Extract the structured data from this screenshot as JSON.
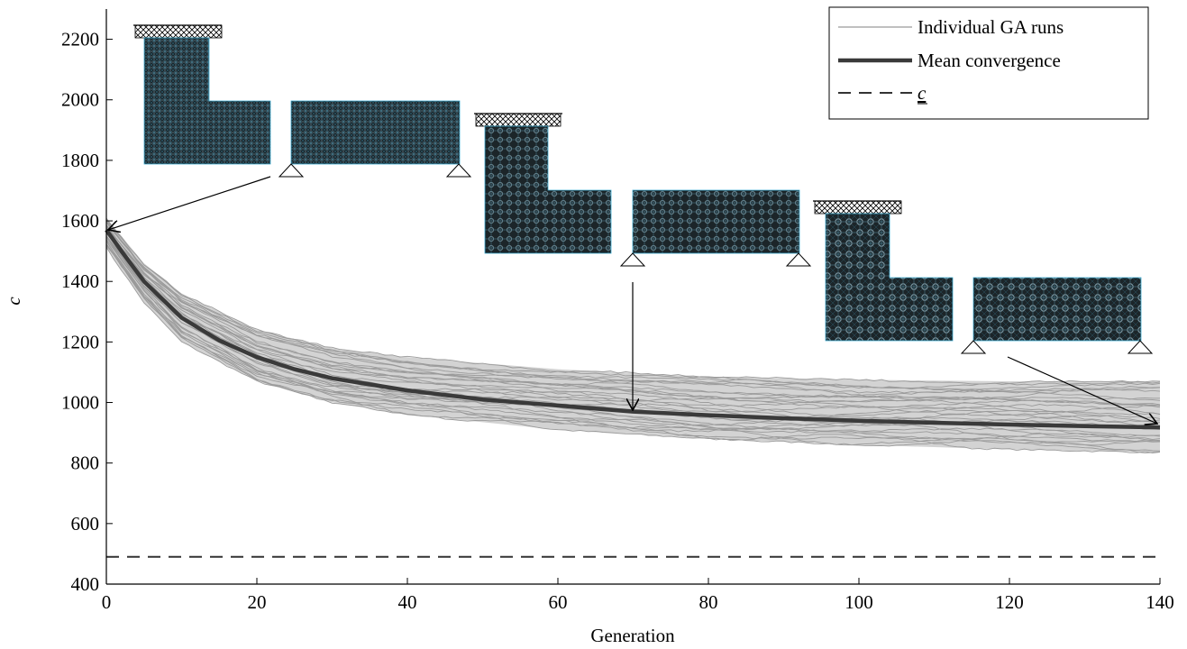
{
  "chart_data": {
    "type": "line",
    "title": "",
    "xlabel": "Generation",
    "ylabel": "c",
    "xlim": [
      0,
      140
    ],
    "ylim": [
      400,
      2300
    ],
    "xticks": [
      0,
      20,
      40,
      60,
      80,
      100,
      120,
      140
    ],
    "yticks": [
      400,
      600,
      800,
      1000,
      1200,
      1400,
      1600,
      1800,
      2000,
      2200
    ],
    "grid": false,
    "legend_position": "top-right",
    "legend": [
      {
        "label": "Individual GA runs",
        "style": "thin-gray"
      },
      {
        "label": "Mean convergence",
        "style": "thick-dark"
      },
      {
        "label": "c",
        "style": "dashed",
        "underlined": true
      }
    ],
    "mean_convergence": {
      "name": "Mean convergence",
      "x": [
        0,
        2,
        5,
        10,
        15,
        20,
        25,
        30,
        40,
        50,
        60,
        70,
        80,
        90,
        100,
        110,
        120,
        130,
        140
      ],
      "y": [
        1570,
        1500,
        1400,
        1280,
        1205,
        1150,
        1110,
        1080,
        1040,
        1010,
        990,
        970,
        958,
        948,
        940,
        933,
        927,
        922,
        918
      ]
    },
    "individual_runs_envelope": {
      "x": [
        0,
        5,
        10,
        20,
        30,
        40,
        60,
        80,
        100,
        120,
        140
      ],
      "upper": [
        1610,
        1460,
        1360,
        1240,
        1180,
        1150,
        1110,
        1085,
        1075,
        1070,
        1070
      ],
      "lower": [
        1510,
        1330,
        1200,
        1070,
        1000,
        960,
        910,
        880,
        860,
        845,
        835
      ]
    },
    "lower_bound": {
      "name": "c",
      "y": 490
    },
    "annotations": [
      {
        "description": "design at generation 0",
        "points_to": {
          "x": 0,
          "y": 1570
        }
      },
      {
        "description": "design at generation 70",
        "points_to": {
          "x": 70,
          "y": 970
        }
      },
      {
        "description": "design at generation 140",
        "points_to": {
          "x": 140,
          "y": 918
        }
      }
    ],
    "colors": {
      "individual": "#9a9a9a",
      "band": "#d3d3d3",
      "mean": "#3a3a3a",
      "bound": "#333333",
      "lattice": "#1d2a30",
      "lattice_edge": "#3aaad0"
    }
  }
}
